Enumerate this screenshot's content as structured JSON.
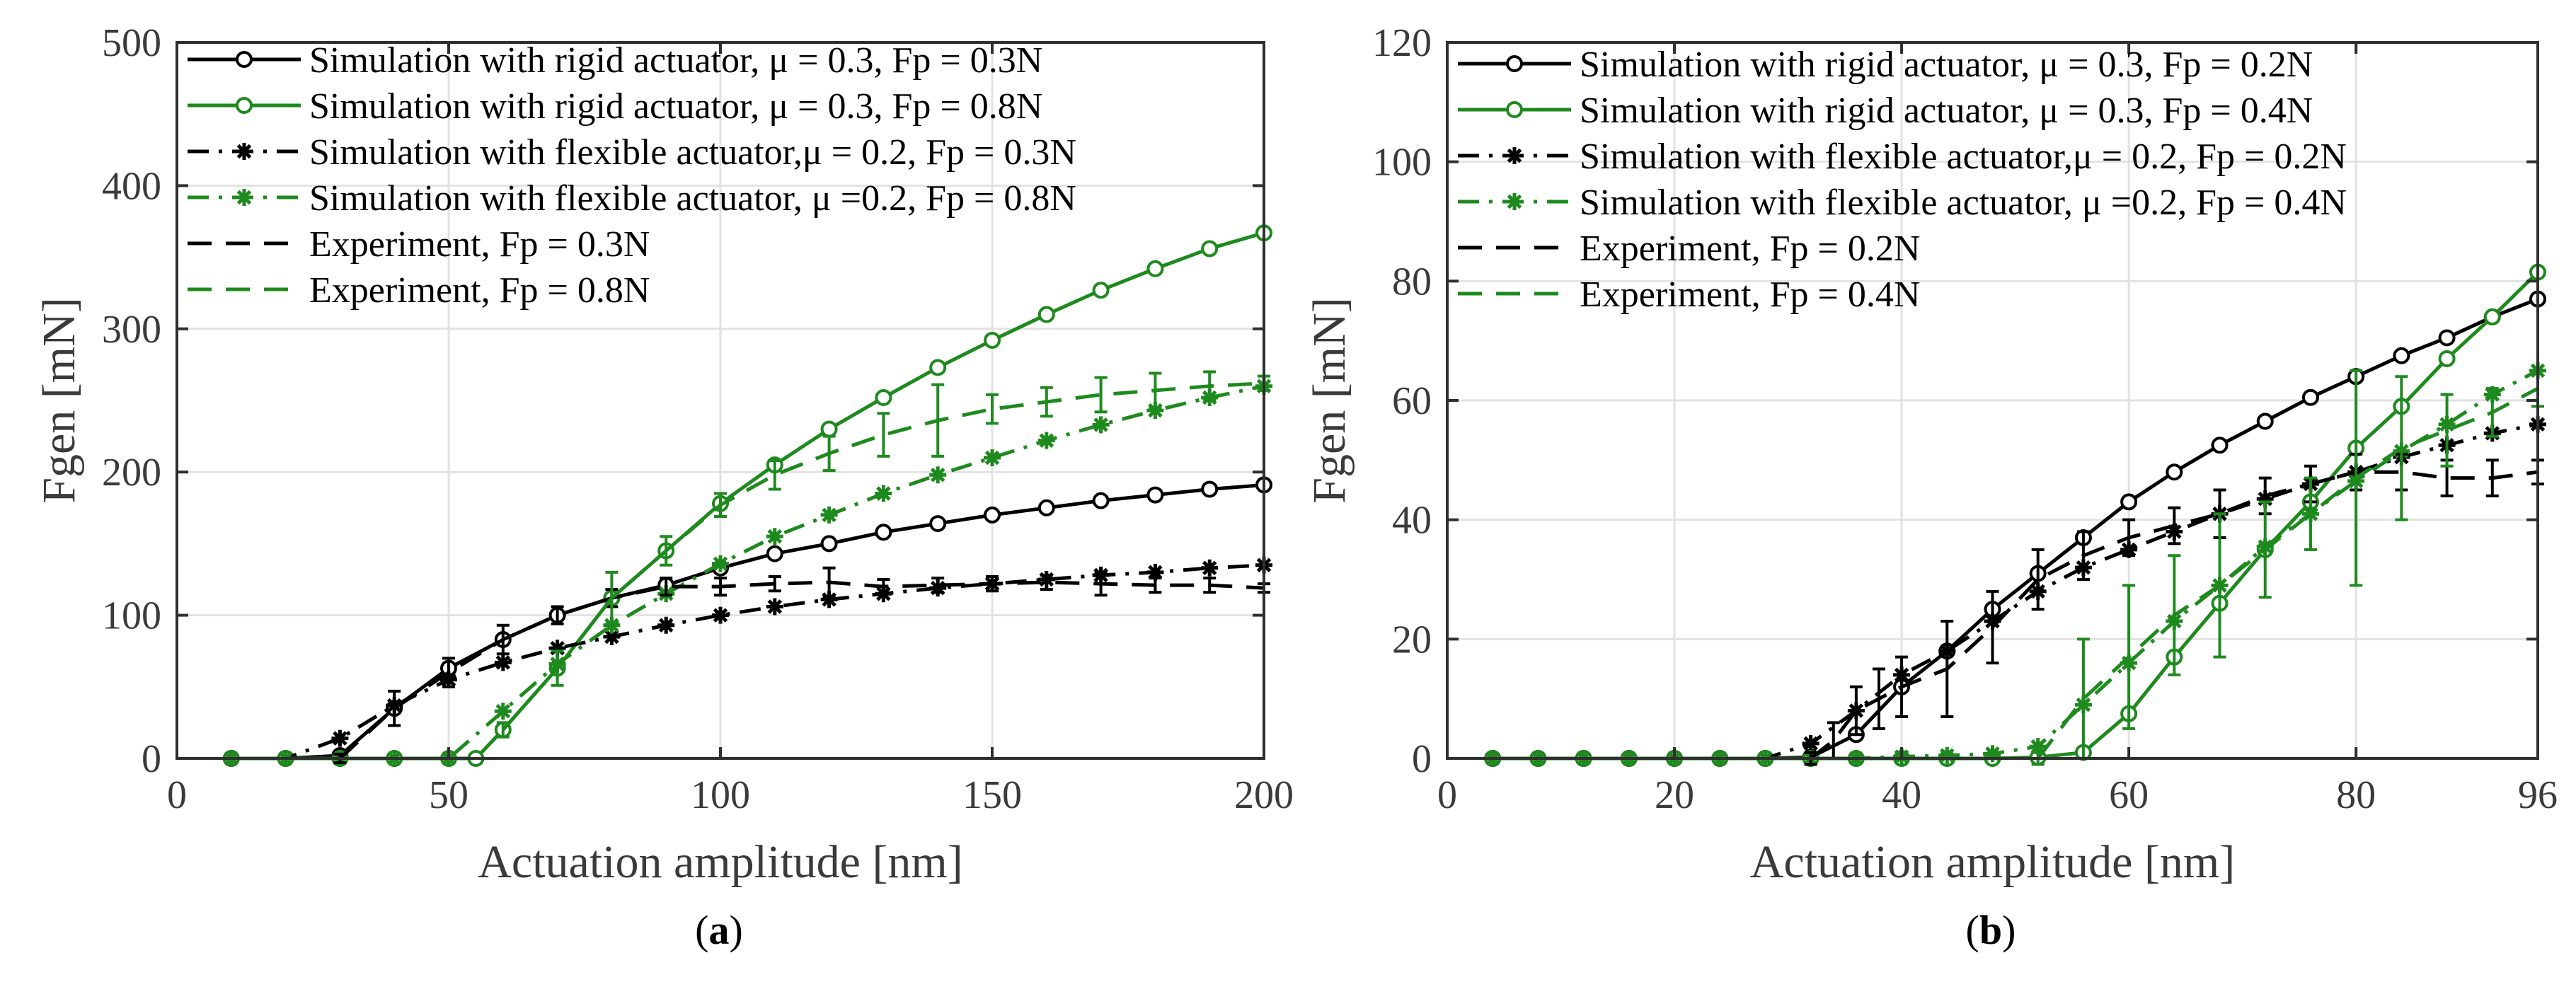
{
  "chart_data": [
    {
      "type": "line",
      "panel_label": "(a)",
      "xlabel": "Actuation amplitude [nm]",
      "ylabel": "Fgen [mN]",
      "xlim": [
        0,
        200
      ],
      "ylim": [
        0,
        500
      ],
      "xticks": [
        0,
        50,
        100,
        150,
        200
      ],
      "yticks": [
        0,
        100,
        200,
        300,
        400,
        500
      ],
      "xtick_labels": [
        "0",
        "50",
        "100",
        "150",
        "200"
      ],
      "ytick_labels": [
        "0",
        "100",
        "200",
        "300",
        "400",
        "500"
      ],
      "grid": true,
      "legend_position": "top-left",
      "series": [
        {
          "name": "Simulation with rigid actuator, μ = 0.3, Fp = 0.3N",
          "color": "#000000",
          "style": "solid",
          "marker": "circle",
          "x": [
            10,
            20,
            30,
            40,
            50,
            60,
            70,
            80,
            90,
            100,
            110,
            120,
            130,
            140,
            150,
            160,
            170,
            180,
            190,
            200
          ],
          "y": [
            0,
            0,
            2,
            35,
            63,
            83,
            100,
            112,
            121,
            133,
            143,
            150,
            158,
            164,
            170,
            175,
            180,
            184,
            188,
            191
          ]
        },
        {
          "name": "Simulation with rigid actuator, μ = 0.3, Fp = 0.8N",
          "color": "#1e8a1e",
          "style": "solid",
          "marker": "circle",
          "x": [
            10,
            20,
            30,
            40,
            50,
            55,
            60,
            70,
            80,
            90,
            100,
            110,
            120,
            130,
            140,
            150,
            160,
            170,
            180,
            190,
            200
          ],
          "y": [
            0,
            0,
            0,
            0,
            0,
            0,
            20,
            63,
            112,
            145,
            178,
            205,
            230,
            252,
            273,
            292,
            310,
            327,
            342,
            356,
            367
          ]
        },
        {
          "name": "Simulation with flexible actuator,μ = 0.2, Fp = 0.3N",
          "color": "#000000",
          "style": "dashdot",
          "marker": "star",
          "x": [
            10,
            20,
            30,
            40,
            50,
            60,
            70,
            80,
            90,
            100,
            110,
            120,
            130,
            140,
            150,
            160,
            170,
            180,
            190,
            200
          ],
          "y": [
            0,
            0,
            14,
            37,
            55,
            67,
            77,
            85,
            93,
            100,
            106,
            111,
            115,
            119,
            122,
            125,
            128,
            130,
            133,
            135
          ]
        },
        {
          "name": "Simulation with flexible actuator, μ =0.2, Fp = 0.8N",
          "color": "#1e8a1e",
          "style": "dashdot",
          "marker": "star",
          "x": [
            10,
            20,
            30,
            40,
            50,
            60,
            70,
            80,
            90,
            100,
            110,
            120,
            130,
            140,
            150,
            160,
            170,
            180,
            190,
            200
          ],
          "y": [
            0,
            0,
            0,
            0,
            0,
            33,
            66,
            93,
            115,
            136,
            155,
            170,
            185,
            198,
            210,
            222,
            233,
            243,
            252,
            260
          ]
        },
        {
          "name": "Experiment, Fp = 0.3N",
          "color": "#000000",
          "style": "dashed",
          "marker": "errorbar",
          "x": [
            30,
            40,
            50,
            60,
            70,
            80,
            90,
            100,
            110,
            120,
            130,
            140,
            150,
            160,
            170,
            180,
            190,
            200
          ],
          "y": [
            0,
            35,
            60,
            83,
            100,
            112,
            120,
            120,
            122,
            123,
            120,
            121,
            122,
            123,
            122,
            121,
            121,
            119
          ],
          "err": [
            3,
            12,
            10,
            10,
            6,
            6,
            6,
            6,
            5,
            10,
            5,
            5,
            5,
            5,
            8,
            5,
            5,
            3
          ]
        },
        {
          "name": "Experiment, Fp = 0.8N",
          "color": "#1e8a1e",
          "style": "dashed",
          "marker": "errorbar",
          "x": [
            60,
            70,
            80,
            90,
            100,
            110,
            120,
            130,
            140,
            150,
            160,
            170,
            180,
            190,
            200
          ],
          "y": [
            20,
            63,
            112,
            145,
            177,
            198,
            213,
            226,
            236,
            244,
            249,
            254,
            257,
            260,
            262
          ],
          "err": [
            5,
            12,
            18,
            10,
            8,
            10,
            12,
            15,
            25,
            10,
            10,
            12,
            12,
            10,
            5
          ]
        }
      ]
    },
    {
      "type": "line",
      "panel_label": "(b)",
      "xlabel": "Actuation amplitude [nm]",
      "ylabel": "Fgen [mN]",
      "xlim": [
        0,
        96
      ],
      "ylim": [
        0,
        120
      ],
      "xticks": [
        0,
        20,
        40,
        60,
        80,
        96
      ],
      "yticks": [
        0,
        20,
        40,
        60,
        80,
        100,
        120
      ],
      "xtick_labels": [
        "0",
        "20",
        "40",
        "60",
        "80",
        "96"
      ],
      "ytick_labels": [
        "0",
        "20",
        "40",
        "60",
        "80",
        "100",
        "120"
      ],
      "grid": true,
      "legend_position": "top-left",
      "series": [
        {
          "name": "Simulation with rigid actuator,  μ = 0.3, Fp = 0.2N",
          "color": "#000000",
          "style": "solid",
          "marker": "circle",
          "x": [
            4,
            8,
            12,
            16,
            20,
            24,
            28,
            32,
            36,
            40,
            44,
            48,
            52,
            56,
            60,
            64,
            68,
            72,
            76,
            80,
            84,
            88,
            92,
            96
          ],
          "y": [
            0,
            0,
            0,
            0,
            0,
            0,
            0,
            0.2,
            4,
            12,
            18,
            25,
            31,
            37,
            43,
            48,
            52.5,
            56.5,
            60.5,
            64,
            67.5,
            70.5,
            74,
            77
          ]
        },
        {
          "name": "Simulation with rigid actuator,  μ = 0.3, Fp = 0.4N",
          "color": "#1e8a1e",
          "style": "solid",
          "marker": "circle",
          "x": [
            4,
            8,
            12,
            16,
            20,
            24,
            28,
            32,
            36,
            40,
            44,
            48,
            52,
            56,
            60,
            64,
            68,
            72,
            76,
            80,
            84,
            88,
            92,
            96
          ],
          "y": [
            0,
            0,
            0,
            0,
            0,
            0,
            0,
            0,
            0,
            0,
            0,
            0,
            0.2,
            1,
            7.5,
            17,
            26,
            35,
            43,
            52,
            59,
            67,
            74,
            81.5
          ]
        },
        {
          "name": "Simulation with flexible actuator,μ = 0.2, Fp = 0.2N",
          "color": "#000000",
          "style": "dashdot",
          "marker": "star",
          "x": [
            4,
            8,
            12,
            16,
            20,
            24,
            28,
            32,
            36,
            40,
            44,
            48,
            52,
            56,
            60,
            64,
            68,
            72,
            76,
            80,
            84,
            88,
            92,
            96
          ],
          "y": [
            0,
            0,
            0,
            0,
            0,
            0,
            0,
            2.5,
            8,
            14,
            18,
            23,
            28,
            32,
            35,
            38,
            41,
            43.5,
            46,
            48,
            50.5,
            52.5,
            54.5,
            56
          ]
        },
        {
          "name": "Simulation with flexible actuator,  μ =0.2, Fp = 0.4N",
          "color": "#1e8a1e",
          "style": "dashdot",
          "marker": "star",
          "x": [
            4,
            8,
            12,
            16,
            20,
            24,
            28,
            32,
            36,
            40,
            44,
            48,
            52,
            56,
            60,
            64,
            68,
            72,
            76,
            80,
            84,
            88,
            92,
            96
          ],
          "y": [
            0,
            0,
            0,
            0,
            0,
            0,
            0,
            0,
            0,
            0.3,
            0.5,
            0.8,
            2,
            9,
            16,
            23,
            29,
            35.5,
            41,
            46.5,
            51.5,
            56,
            61,
            65
          ]
        },
        {
          "name": "Experiment, Fp = 0.2N",
          "color": "#000000",
          "style": "dashed",
          "marker": "errorbar",
          "x": [
            32,
            34,
            36,
            38,
            40,
            44,
            48,
            52,
            56,
            60,
            64,
            68,
            72,
            76,
            80,
            84,
            88,
            92,
            96
          ],
          "y": [
            0,
            3,
            8,
            10,
            12,
            15,
            22,
            30,
            34,
            37,
            39,
            41,
            44,
            46,
            48,
            48,
            47,
            47,
            48
          ],
          "err": [
            1,
            3,
            4,
            5,
            5,
            8,
            6,
            5,
            4,
            3,
            3,
            4,
            3,
            3,
            3,
            3,
            3,
            3,
            2
          ]
        },
        {
          "name": "Experiment, Fp = 0.4N",
          "color": "#1e8a1e",
          "style": "dashed",
          "marker": "errorbar",
          "x": [
            52,
            56,
            60,
            64,
            68,
            72,
            76,
            80,
            84,
            88,
            92,
            96
          ],
          "y": [
            0,
            10,
            17,
            24,
            29,
            35,
            41,
            47,
            52,
            55,
            58,
            62
          ],
          "err": [
            1,
            10,
            12,
            10,
            12,
            8,
            6,
            18,
            12,
            6,
            4,
            3
          ]
        }
      ]
    }
  ]
}
